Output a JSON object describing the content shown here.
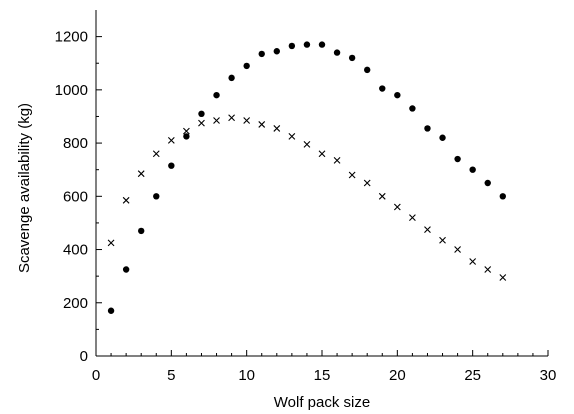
{
  "chart_data": {
    "type": "scatter",
    "xlabel": "Wolf pack size",
    "ylabel": "Scavenge availability (kg)",
    "xlim": [
      0,
      30
    ],
    "ylim": [
      0,
      1300
    ],
    "xticks": [
      0,
      5,
      10,
      15,
      20,
      25,
      30
    ],
    "yticks": [
      0,
      200,
      400,
      600,
      800,
      1000,
      1200
    ],
    "grid": false,
    "series": [
      {
        "marker": "circle",
        "color": "#000000",
        "points": [
          [
            1,
            170
          ],
          [
            2,
            325
          ],
          [
            3,
            470
          ],
          [
            4,
            600
          ],
          [
            5,
            715
          ],
          [
            6,
            825
          ],
          [
            7,
            910
          ],
          [
            8,
            980
          ],
          [
            9,
            1045
          ],
          [
            10,
            1090
          ],
          [
            11,
            1135
          ],
          [
            12,
            1145
          ],
          [
            13,
            1165
          ],
          [
            14,
            1170
          ],
          [
            15,
            1170
          ],
          [
            16,
            1140
          ],
          [
            17,
            1120
          ],
          [
            18,
            1075
          ],
          [
            19,
            1005
          ],
          [
            20,
            980
          ],
          [
            21,
            930
          ],
          [
            22,
            855
          ],
          [
            23,
            820
          ],
          [
            24,
            740
          ],
          [
            25,
            700
          ],
          [
            26,
            650
          ],
          [
            27,
            600
          ]
        ]
      },
      {
        "marker": "x",
        "color": "#000000",
        "points": [
          [
            1,
            425
          ],
          [
            2,
            585
          ],
          [
            3,
            685
          ],
          [
            4,
            760
          ],
          [
            5,
            810
          ],
          [
            6,
            845
          ],
          [
            7,
            875
          ],
          [
            8,
            885
          ],
          [
            9,
            895
          ],
          [
            10,
            885
          ],
          [
            11,
            870
          ],
          [
            12,
            855
          ],
          [
            13,
            825
          ],
          [
            14,
            795
          ],
          [
            15,
            760
          ],
          [
            16,
            735
          ],
          [
            17,
            680
          ],
          [
            18,
            650
          ],
          [
            19,
            600
          ],
          [
            20,
            560
          ],
          [
            21,
            520
          ],
          [
            22,
            475
          ],
          [
            23,
            435
          ],
          [
            24,
            400
          ],
          [
            25,
            355
          ],
          [
            26,
            325
          ],
          [
            27,
            295
          ]
        ]
      }
    ]
  }
}
